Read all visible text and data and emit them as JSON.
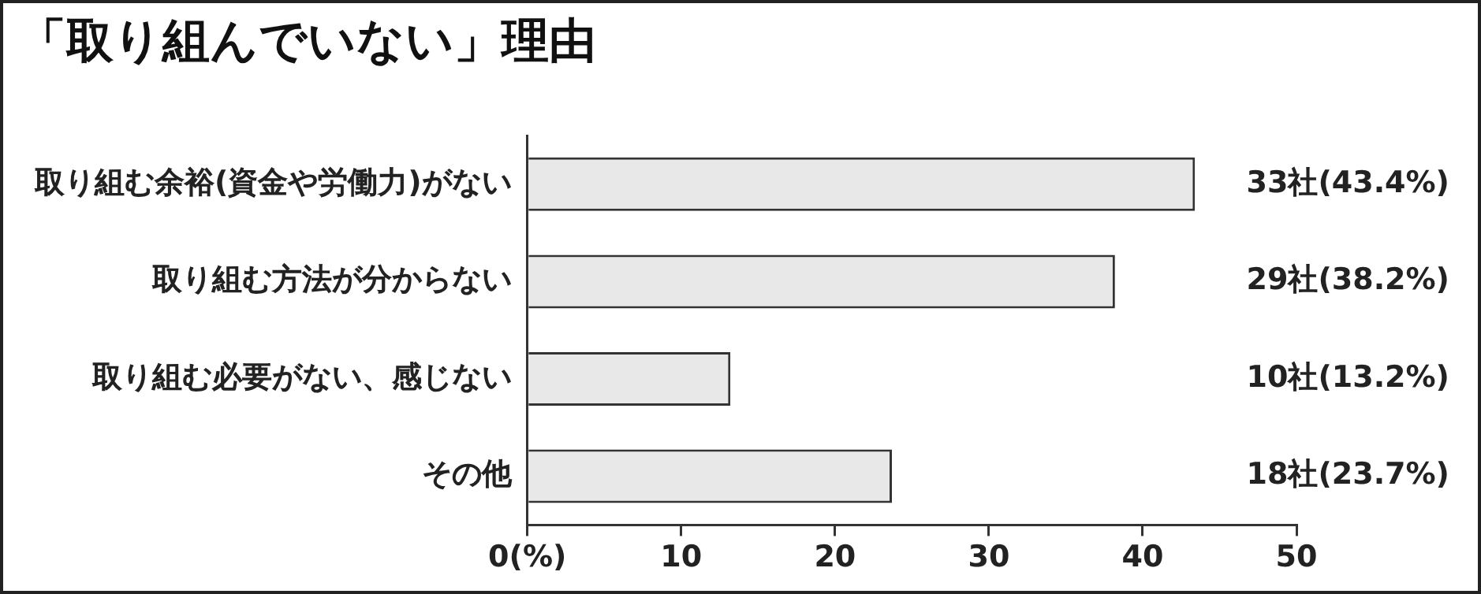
{
  "chart_data": {
    "type": "bar",
    "orientation": "horizontal",
    "title": "「取り組んでいない」理由",
    "categories": [
      "取り組む余裕(資金や労働力)がない",
      "取り組む方法が分からない",
      "取り組む必要がない、感じない",
      "その他"
    ],
    "values": [
      43.4,
      38.2,
      13.2,
      23.7
    ],
    "value_labels": [
      "33社(43.4%)",
      "29社(38.2%)",
      "10社(13.2%)",
      "18社(23.7%)"
    ],
    "color": "#e8e8e8",
    "xlim": [
      0,
      50
    ],
    "xticks": [
      {
        "value": 0,
        "label": "0(%)"
      },
      10,
      20,
      30,
      40,
      50
    ],
    "grid": false,
    "legend": false
  }
}
